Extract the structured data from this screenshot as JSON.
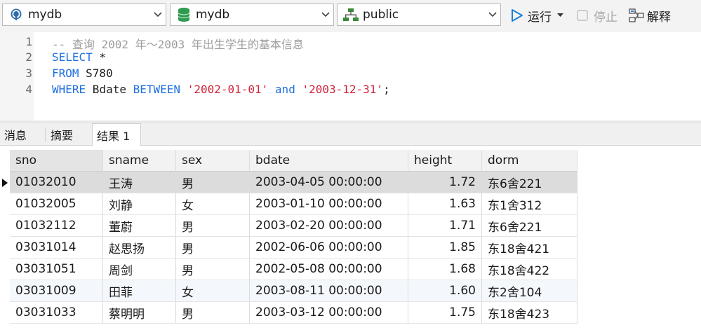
{
  "toolbar": {
    "connection": {
      "value": "mydb",
      "icon": "elephant-icon"
    },
    "database": {
      "value": "mydb",
      "icon": "database-icon"
    },
    "schema": {
      "value": "public",
      "icon": "schema-icon"
    },
    "run_label": "运行",
    "stop_label": "停止",
    "explain_label": "解释"
  },
  "editor": {
    "line_numbers": [
      "1",
      "2",
      "3",
      "4"
    ],
    "lines": [
      [
        {
          "t": "cmt",
          "v": "-- 查询 2002 年～2003 年出生学生的基本信息"
        }
      ],
      [
        {
          "t": "kw",
          "v": "SELECT"
        },
        {
          "t": "plain",
          "v": " *"
        }
      ],
      [
        {
          "t": "kw",
          "v": "FROM"
        },
        {
          "t": "plain",
          "v": " S780"
        }
      ],
      [
        {
          "t": "kw",
          "v": "WHERE"
        },
        {
          "t": "plain",
          "v": " Bdate "
        },
        {
          "t": "kw",
          "v": "BETWEEN"
        },
        {
          "t": "plain",
          "v": " "
        },
        {
          "t": "str",
          "v": "'2002-01-01'"
        },
        {
          "t": "plain",
          "v": " "
        },
        {
          "t": "kw",
          "v": "and"
        },
        {
          "t": "plain",
          "v": " "
        },
        {
          "t": "str",
          "v": "'2003-12-31'"
        },
        {
          "t": "plain",
          "v": ";"
        }
      ]
    ]
  },
  "tabs": {
    "messages": "消息",
    "summary": "摘要",
    "result": "结果 1"
  },
  "grid": {
    "columns": [
      "sno",
      "sname",
      "sex",
      "bdate",
      "height",
      "dorm"
    ],
    "rows": [
      [
        "01032010",
        "王涛",
        "男",
        "2003-04-05 00:00:00",
        "1.72",
        "东6舍221"
      ],
      [
        "01032005",
        "刘静",
        "女",
        "2003-01-10 00:00:00",
        "1.63",
        "东1舍312"
      ],
      [
        "01032112",
        "董蔚",
        "男",
        "2003-02-20 00:00:00",
        "1.71",
        "东6舍221"
      ],
      [
        "03031014",
        "赵思扬",
        "男",
        "2002-06-06 00:00:00",
        "1.85",
        "东18舍421"
      ],
      [
        "03031051",
        "周剑",
        "男",
        "2002-05-08 00:00:00",
        "1.68",
        "东18舍422"
      ],
      [
        "03031009",
        "田菲",
        "女",
        "2003-08-11 00:00:00",
        "1.60",
        "东2舍104"
      ],
      [
        "03031033",
        "蔡明明",
        "男",
        "2003-03-12 00:00:00",
        "1.75",
        "东18舍423"
      ]
    ],
    "selected_row": 0
  },
  "colors": {
    "keyword": "#1f6fe0",
    "string": "#d0213a",
    "comment": "#9c9c9c",
    "run_icon": "#1e7fd6"
  }
}
